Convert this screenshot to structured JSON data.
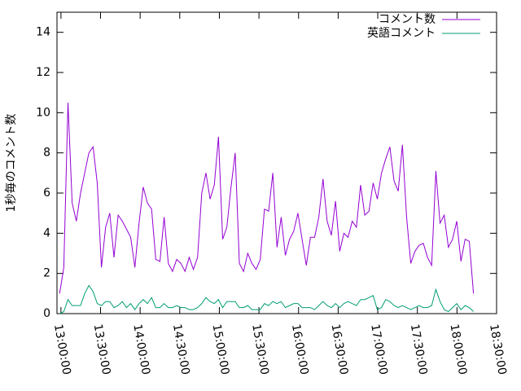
{
  "chart_data": {
    "type": "line",
    "ylabel": "1秒毎のコメント数",
    "x": [
      "12:59:00",
      "13:02:10",
      "13:05:20",
      "13:08:30",
      "13:11:40",
      "13:14:50",
      "13:18:00",
      "13:21:10",
      "13:24:20",
      "13:27:30",
      "13:30:40",
      "13:33:50",
      "13:37:00",
      "13:40:10",
      "13:43:20",
      "13:46:30",
      "13:49:40",
      "13:52:50",
      "13:56:00",
      "13:59:10",
      "14:02:20",
      "14:05:30",
      "14:08:40",
      "14:11:50",
      "14:15:00",
      "14:18:10",
      "14:21:20",
      "14:24:30",
      "14:27:40",
      "14:30:50",
      "14:34:00",
      "14:37:10",
      "14:40:20",
      "14:43:30",
      "14:46:40",
      "14:49:50",
      "14:53:00",
      "14:56:10",
      "14:59:20",
      "15:02:30",
      "15:05:40",
      "15:08:50",
      "15:12:00",
      "15:15:10",
      "15:18:20",
      "15:21:30",
      "15:24:40",
      "15:27:50",
      "15:31:00",
      "15:34:10",
      "15:37:20",
      "15:40:30",
      "15:43:40",
      "15:46:50",
      "15:50:00",
      "15:53:10",
      "15:56:20",
      "15:59:30",
      "16:02:40",
      "16:05:50",
      "16:09:00",
      "16:12:10",
      "16:15:20",
      "16:18:30",
      "16:21:40",
      "16:24:50",
      "16:28:00",
      "16:31:10",
      "16:34:20",
      "16:37:30",
      "16:40:40",
      "16:43:50",
      "16:47:00",
      "16:50:10",
      "16:53:20",
      "16:56:30",
      "16:59:40",
      "17:02:50",
      "17:06:00",
      "17:09:10",
      "17:12:20",
      "17:15:30",
      "17:18:40",
      "17:21:50",
      "17:25:00",
      "17:28:10",
      "17:31:20",
      "17:34:30",
      "17:37:40",
      "17:40:50",
      "17:44:00",
      "17:47:10",
      "17:50:20",
      "17:53:30",
      "17:56:40",
      "17:59:50",
      "18:03:00",
      "18:06:10",
      "18:09:20",
      "18:12:30"
    ],
    "series": [
      {
        "name": "コメント数",
        "color": "#9400d3",
        "values": [
          1.0,
          2.3,
          10.5,
          5.5,
          4.6,
          6,
          7,
          8,
          8.3,
          6.5,
          2.3,
          4.3,
          5,
          2.8,
          4.9,
          4.6,
          4.2,
          3.8,
          2.3,
          4.5,
          6.3,
          5.5,
          5.2,
          2.7,
          2.6,
          4.8,
          2.5,
          2.1,
          2.7,
          2.5,
          2.1,
          2.8,
          2.2,
          2.8,
          6,
          7,
          5.7,
          6.4,
          8.8,
          3.7,
          4.3,
          6.3,
          8.0,
          2.5,
          2.1,
          3.0,
          2.5,
          2.2,
          2.7,
          5.2,
          5.1,
          7.0,
          3.3,
          4.8,
          2.9,
          3.7,
          4.1,
          5.0,
          3.7,
          2.4,
          3.8,
          3.8,
          4.8,
          6.7,
          4.6,
          3.9,
          5.6,
          3.1,
          4.0,
          3.8,
          4.6,
          4.3,
          6.4,
          4.9,
          5.1,
          6.5,
          5.7,
          7.0,
          7.7,
          8.3,
          6.6,
          6.1,
          8.4,
          4.8,
          2.5,
          3.1,
          3.4,
          3.5,
          2.8,
          2.4,
          7.1,
          4.5,
          4.9,
          3.3,
          3.7,
          4.6,
          2.6,
          3.7,
          3.6,
          1.0
        ]
      },
      {
        "name": "英語コメント",
        "color": "#009e73",
        "values": [
          0,
          0.1,
          0.7,
          0.4,
          0.4,
          0.4,
          1.0,
          1.4,
          1.1,
          0.5,
          0.4,
          0.6,
          0.6,
          0.3,
          0.4,
          0.6,
          0.3,
          0.5,
          0.2,
          0.5,
          0.7,
          0.5,
          0.8,
          0.3,
          0.3,
          0.5,
          0.3,
          0.3,
          0.4,
          0.3,
          0.3,
          0.2,
          0.2,
          0.3,
          0.5,
          0.8,
          0.6,
          0.5,
          0.7,
          0.3,
          0.6,
          0.6,
          0.6,
          0.3,
          0.3,
          0.4,
          0.2,
          0.2,
          0.2,
          0.5,
          0.4,
          0.6,
          0.5,
          0.6,
          0.3,
          0.4,
          0.5,
          0.5,
          0.3,
          0.3,
          0.3,
          0.2,
          0.4,
          0.6,
          0.4,
          0.3,
          0.5,
          0.3,
          0.5,
          0.6,
          0.5,
          0.4,
          0.7,
          0.7,
          0.8,
          0.9,
          0.2,
          0.3,
          0.7,
          0.6,
          0.4,
          0.3,
          0.4,
          0.3,
          0.2,
          0.3,
          0.4,
          0.3,
          0.3,
          0.4,
          1.2,
          0.6,
          0.2,
          0.1,
          0.3,
          0.5,
          0.2,
          0.4,
          0.3,
          0.1
        ]
      }
    ],
    "xlim": [
      "12:57:00",
      "18:30:00"
    ],
    "xticks": [
      "13:00:00",
      "13:30:00",
      "14:00:00",
      "14:30:00",
      "15:00:00",
      "15:30:00",
      "16:00:00",
      "16:30:00",
      "17:00:00",
      "17:30:00",
      "18:00:00",
      "18:30:00"
    ],
    "ylim": [
      0,
      15
    ],
    "yticks": [
      0,
      2,
      4,
      6,
      8,
      10,
      12,
      14
    ],
    "grid": false,
    "legend": "top-right"
  }
}
